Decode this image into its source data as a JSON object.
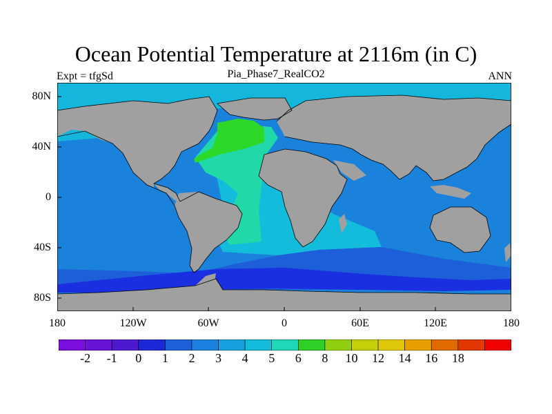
{
  "title": "Ocean Potential Temperature at 2116m (in C)",
  "left_label": "Expt = tfgSd",
  "center_label": "Pia_Phase7_RealCO2",
  "right_label": "ANN",
  "lat_labels": [
    "80N",
    "40N",
    "0",
    "40S",
    "80S"
  ],
  "lon_labels": [
    "180",
    "120W",
    "60W",
    "0",
    "60E",
    "120E",
    "180"
  ],
  "colorbar": {
    "colors": [
      "#7a0fe0",
      "#6a12d8",
      "#4c18d0",
      "#1a28d8",
      "#1c5fd8",
      "#1a80de",
      "#16a0e0",
      "#14bcdc",
      "#20d8b8",
      "#2ed028",
      "#90d010",
      "#c8d008",
      "#e0c808",
      "#e8a000",
      "#e06c00",
      "#e03800",
      "#f00000"
    ],
    "labels": [
      "-2",
      "-1",
      "0",
      "1",
      "2",
      "3",
      "4",
      "5",
      "6",
      "8",
      "10",
      "12",
      "14",
      "16",
      "18"
    ]
  },
  "colors": {
    "land": "#a0a0a0",
    "arctic": "#14b6dc",
    "pacific_indian": "#1b82dc",
    "south_atlantic": "#14bcdc",
    "north_atlantic_deep": "#20d8a8",
    "labrador_green": "#2ed828",
    "southern_ocean": "#1c5fd8",
    "antarctic_bottom": "#1a2fe0"
  }
}
